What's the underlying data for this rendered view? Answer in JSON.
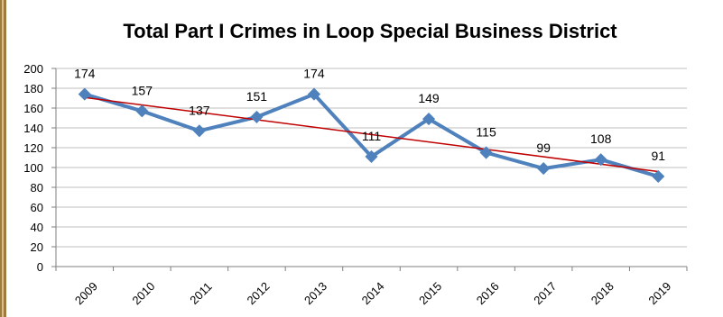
{
  "chart_data": {
    "type": "line",
    "title": "Total Part I Crimes in Loop Special Business District",
    "xlabel": "",
    "ylabel": "",
    "categories": [
      "2009",
      "2010",
      "2011",
      "2012",
      "2013",
      "2014",
      "2015",
      "2016",
      "2017",
      "2018",
      "2019"
    ],
    "series": [
      {
        "values": [
          174,
          157,
          137,
          151,
          174,
          111,
          149,
          115,
          99,
          108,
          91
        ],
        "color": "#4f81bd"
      }
    ],
    "trendline": {
      "type": "linear",
      "color": "#c00000"
    },
    "ylim": [
      0,
      200
    ],
    "yticks": [
      0,
      20,
      40,
      60,
      80,
      100,
      120,
      140,
      160,
      180,
      200
    ],
    "data_labels": true,
    "grid": true,
    "legend": "none"
  }
}
